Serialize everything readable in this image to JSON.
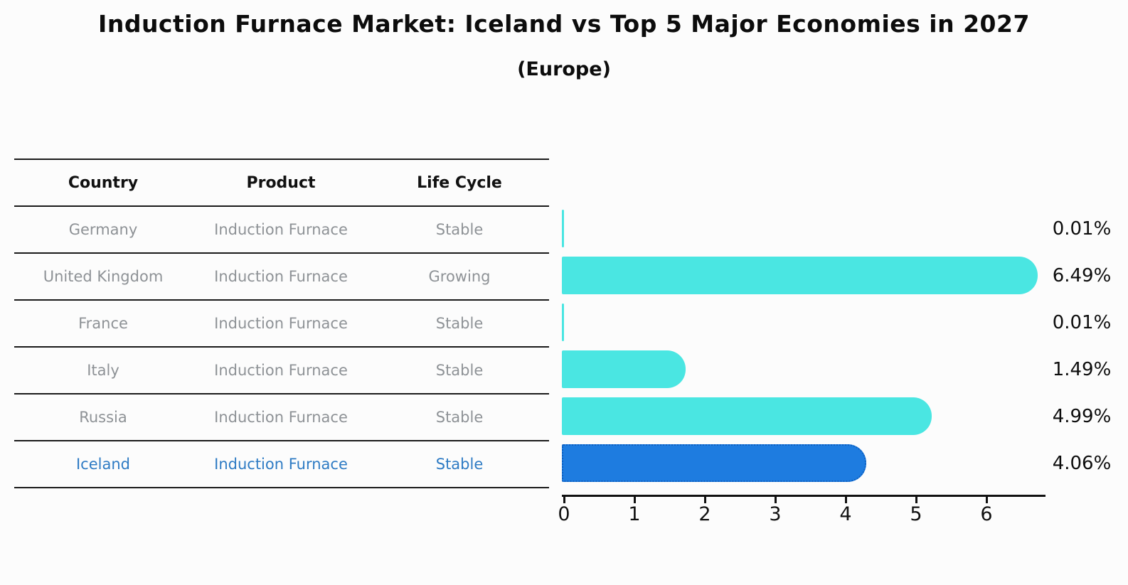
{
  "title": "Induction Furnace Market: Iceland vs Top 5 Major Economies in 2027",
  "subtitle": "(Europe)",
  "table": {
    "headers": [
      "Country",
      "Product",
      "Life Cycle"
    ],
    "rows": [
      {
        "country": "Germany",
        "product": "Induction Furnace",
        "life_cycle": "Stable"
      },
      {
        "country": "United Kingdom",
        "product": "Induction Furnace",
        "life_cycle": "Growing"
      },
      {
        "country": "France",
        "product": "Induction Furnace",
        "life_cycle": "Stable"
      },
      {
        "country": "Italy",
        "product": "Induction Furnace",
        "life_cycle": "Stable"
      },
      {
        "country": "Russia",
        "product": "Induction Furnace",
        "life_cycle": "Stable"
      },
      {
        "country": "Iceland",
        "product": "Induction Furnace",
        "life_cycle": "Stable"
      }
    ],
    "highlight_row": "Iceland"
  },
  "chart_data": {
    "type": "bar",
    "orientation": "horizontal",
    "title": "Induction Furnace Market: Iceland vs Top 5 Major Economies in 2027",
    "subtitle": "(Europe)",
    "categories": [
      "Germany",
      "United Kingdom",
      "France",
      "Italy",
      "Russia",
      "Iceland"
    ],
    "values": [
      0.01,
      6.49,
      0.01,
      1.49,
      4.99,
      4.06
    ],
    "value_labels": [
      "0.01%",
      "6.49%",
      "0.01%",
      "1.49%",
      "4.99%",
      "4.06%"
    ],
    "unit": "percent",
    "xlim": [
      0,
      6.85
    ],
    "xticks": [
      "0",
      "1",
      "2",
      "3",
      "4",
      "5",
      "6"
    ],
    "grid": false,
    "legend": "none",
    "bar_color": "#4AE6E2",
    "highlight_index": 5,
    "highlight_color": "#1E7CE0",
    "highlight_border_color": "#0D5FC0"
  },
  "colors": {
    "background": "#FCFCFC",
    "header_text": "#111111",
    "table_text": "#8E9296",
    "highlight_text": "#2E7BC4",
    "line": "#1A1A1A",
    "value_label_text": "#0D0D0D",
    "axis_text": "#111111"
  }
}
